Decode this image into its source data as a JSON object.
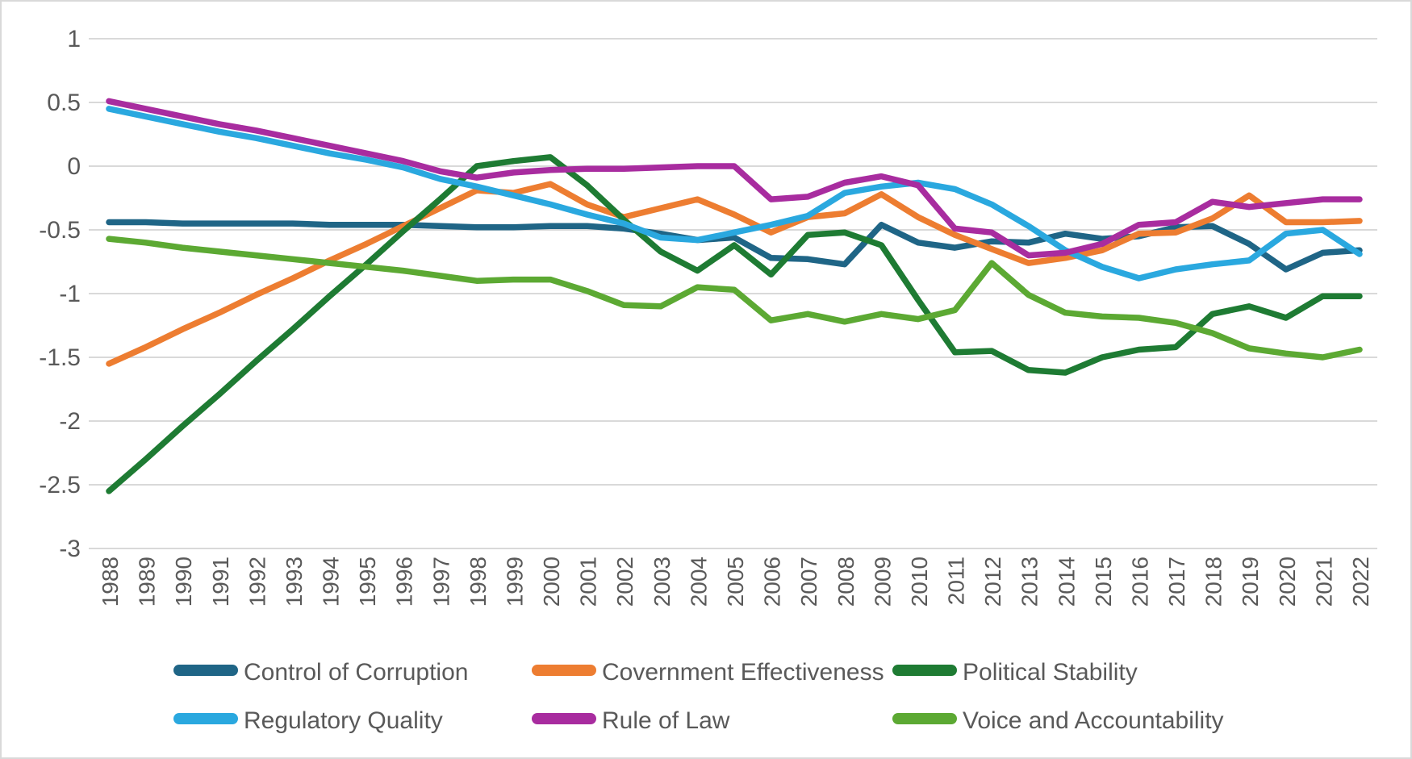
{
  "chart_data": {
    "type": "line",
    "title": "",
    "xlabel": "",
    "ylabel": "",
    "x": [
      1988,
      1989,
      1990,
      1991,
      1992,
      1993,
      1994,
      1995,
      1996,
      1997,
      1998,
      1999,
      2000,
      2001,
      2002,
      2003,
      2004,
      2005,
      2006,
      2007,
      2008,
      2009,
      2010,
      2011,
      2012,
      2013,
      2014,
      2015,
      2016,
      2017,
      2018,
      2019,
      2020,
      2021,
      2022
    ],
    "ylim": [
      -3,
      1
    ],
    "yticks": [
      {
        "v": 1,
        "label": "1"
      },
      {
        "v": 0.5,
        "label": "0.5"
      },
      {
        "v": 0,
        "label": "0"
      },
      {
        "v": -0.5,
        "label": "-0.5"
      },
      {
        "v": -1,
        "label": "-1"
      },
      {
        "v": -1.5,
        "label": "-1.5"
      },
      {
        "v": -2,
        "label": "-2"
      },
      {
        "v": -2.5,
        "label": "-2.5"
      },
      {
        "v": -3,
        "label": "-3"
      }
    ],
    "grid": true,
    "gridline_color": "#d9d9d9",
    "axis_text_color": "#595959",
    "legend_text_color": "#595959",
    "legend_position": "bottom",
    "legend_columns": 3,
    "series": [
      {
        "name": "Control of Corruption",
        "color": "#1f6586",
        "values": [
          -0.44,
          -0.44,
          -0.45,
          -0.45,
          -0.45,
          -0.45,
          -0.46,
          -0.46,
          -0.46,
          -0.47,
          -0.48,
          -0.48,
          -0.47,
          -0.47,
          -0.49,
          -0.53,
          -0.58,
          -0.56,
          -0.72,
          -0.73,
          -0.77,
          -0.46,
          -0.6,
          -0.64,
          -0.59,
          -0.6,
          -0.53,
          -0.57,
          -0.55,
          -0.48,
          -0.47,
          -0.61,
          -0.81,
          -0.68,
          -0.66
        ]
      },
      {
        "name": "Covernment Effectiveness",
        "color": "#ed7d31",
        "values": [
          -1.55,
          -1.42,
          -1.28,
          -1.15,
          -1.01,
          -0.88,
          -0.74,
          -0.61,
          -0.47,
          -0.33,
          -0.19,
          -0.21,
          -0.14,
          -0.3,
          -0.4,
          -0.33,
          -0.26,
          -0.38,
          -0.52,
          -0.4,
          -0.37,
          -0.22,
          -0.4,
          -0.54,
          -0.65,
          -0.76,
          -0.72,
          -0.66,
          -0.53,
          -0.52,
          -0.41,
          -0.23,
          -0.44,
          -0.44,
          -0.43
        ]
      },
      {
        "name": "Political Stability",
        "color": "#1e7b33",
        "values": [
          -2.55,
          -2.3,
          -2.04,
          -1.79,
          -1.53,
          -1.28,
          -1.02,
          -0.77,
          -0.51,
          -0.26,
          0.0,
          0.04,
          0.07,
          -0.15,
          -0.42,
          -0.67,
          -0.82,
          -0.62,
          -0.85,
          -0.54,
          -0.52,
          -0.62,
          -1.05,
          -1.46,
          -1.45,
          -1.6,
          -1.62,
          -1.5,
          -1.44,
          -1.42,
          -1.16,
          -1.1,
          -1.19,
          -1.02,
          -1.02
        ]
      },
      {
        "name": "Regulatory Quality",
        "color": "#2aa8df",
        "values": [
          0.45,
          0.39,
          0.33,
          0.27,
          0.22,
          0.16,
          0.1,
          0.05,
          -0.01,
          -0.1,
          -0.16,
          -0.23,
          -0.3,
          -0.38,
          -0.45,
          -0.56,
          -0.58,
          -0.52,
          -0.46,
          -0.39,
          -0.21,
          -0.16,
          -0.13,
          -0.18,
          -0.3,
          -0.47,
          -0.66,
          -0.79,
          -0.88,
          -0.81,
          -0.77,
          -0.74,
          -0.53,
          -0.5,
          -0.69
        ]
      },
      {
        "name": "Rule of Law",
        "color": "#a82c9f",
        "values": [
          0.51,
          0.45,
          0.39,
          0.33,
          0.28,
          0.22,
          0.16,
          0.1,
          0.04,
          -0.04,
          -0.09,
          -0.05,
          -0.03,
          -0.02,
          -0.02,
          -0.01,
          0.0,
          0.0,
          -0.26,
          -0.24,
          -0.13,
          -0.08,
          -0.15,
          -0.49,
          -0.52,
          -0.7,
          -0.68,
          -0.61,
          -0.46,
          -0.44,
          -0.28,
          -0.32,
          -0.29,
          -0.26,
          -0.26
        ]
      },
      {
        "name": "Voice and Accountability",
        "color": "#5ca933",
        "values": [
          -0.57,
          -0.6,
          -0.64,
          -0.67,
          -0.7,
          -0.73,
          -0.76,
          -0.79,
          -0.82,
          -0.86,
          -0.9,
          -0.89,
          -0.89,
          -0.98,
          -1.09,
          -1.1,
          -0.95,
          -0.97,
          -1.21,
          -1.16,
          -1.22,
          -1.16,
          -1.2,
          -1.13,
          -0.76,
          -1.01,
          -1.15,
          -1.18,
          -1.19,
          -1.23,
          -1.31,
          -1.43,
          -1.47,
          -1.5,
          -1.44
        ]
      }
    ]
  }
}
